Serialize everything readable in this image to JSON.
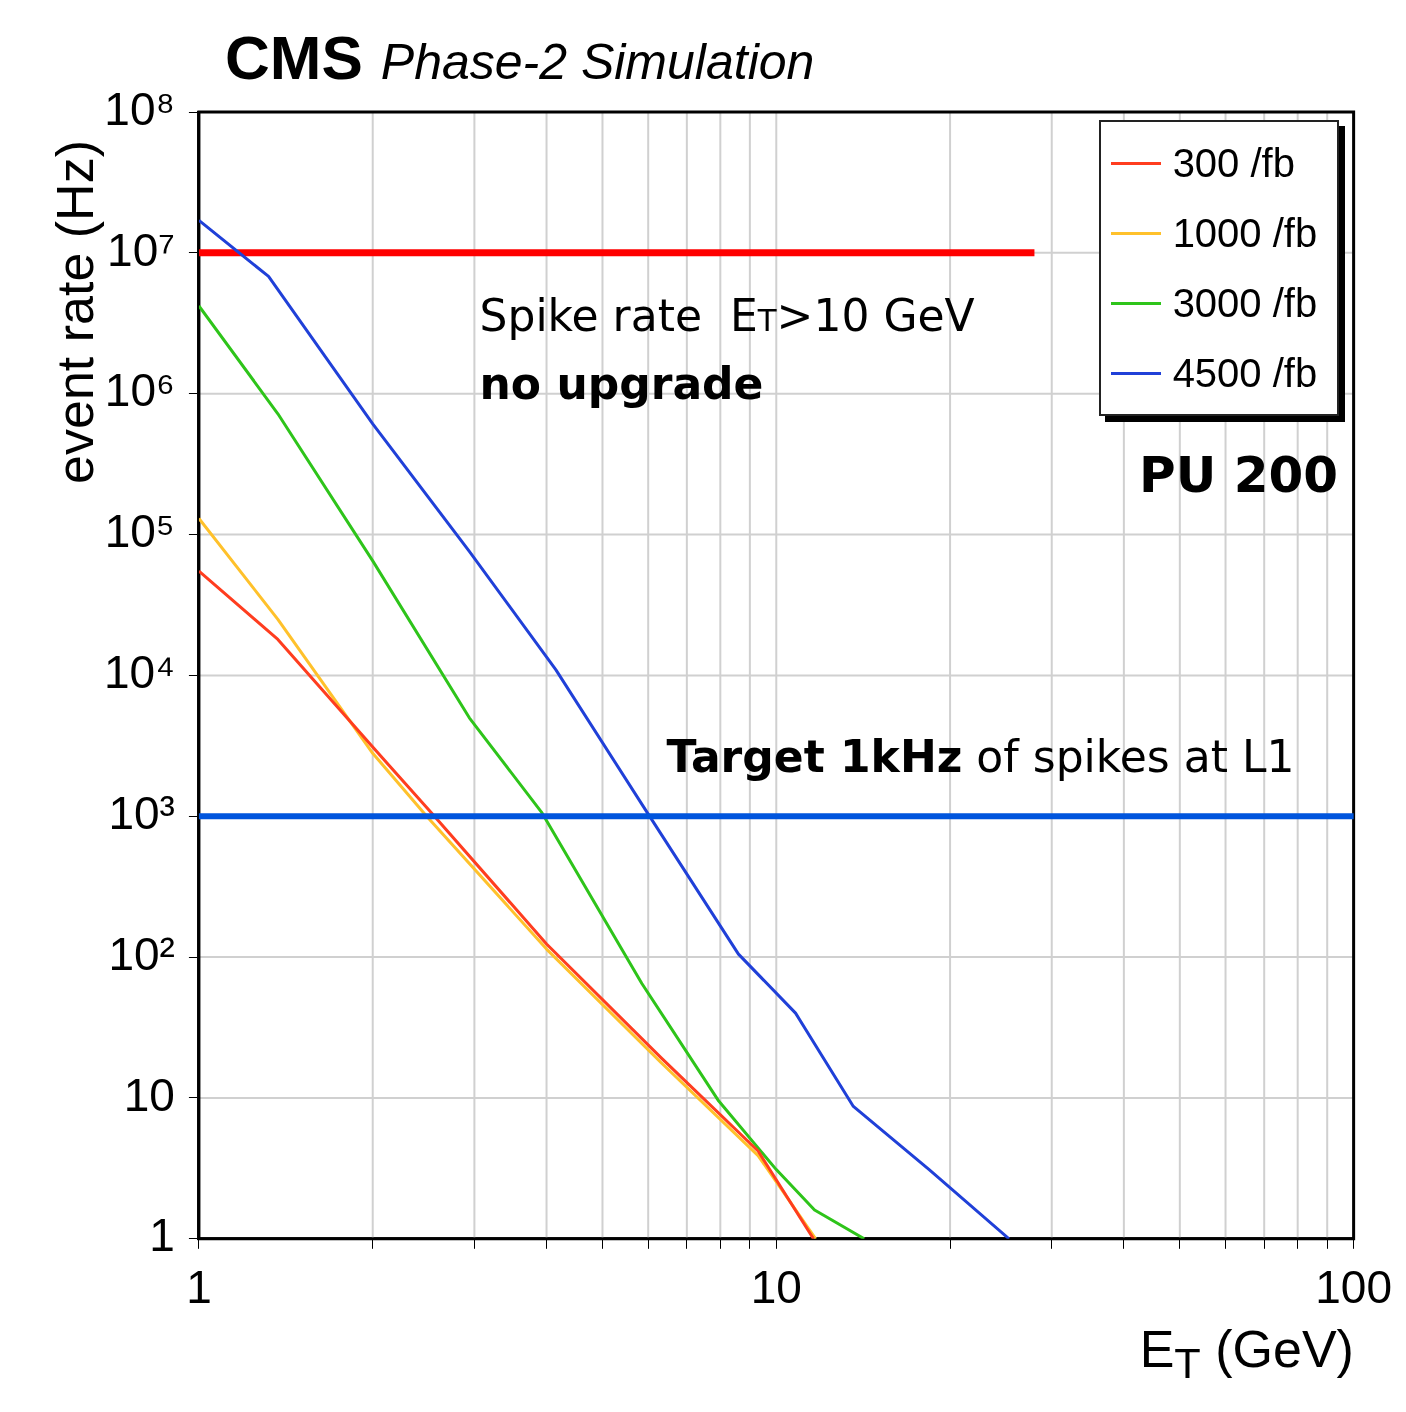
{
  "chart_data": {
    "type": "line",
    "title": "CMS",
    "subtitle": "Phase-2 Simulation",
    "xlabel": "E$_{T}$ (GeV)",
    "ylabel": "event rate (Hz)",
    "log": "xy",
    "grid": true,
    "legend": "top right",
    "marker": "none",
    "line_style": "solid",
    "xlim": [
      1,
      100
    ],
    "xticks": [
      1,
      {
        "value": 2,
        "label": null
      },
      {
        "value": 3,
        "label": null
      },
      {
        "value": 4,
        "label": null
      },
      {
        "value": 5,
        "label": null
      },
      {
        "value": 6,
        "label": null
      },
      {
        "value": 7,
        "label": null
      },
      {
        "value": 8,
        "label": null
      },
      {
        "value": 9,
        "label": null
      },
      10,
      {
        "value": 20,
        "label": null
      },
      {
        "value": 30,
        "label": null
      },
      {
        "value": 40,
        "label": null
      },
      {
        "value": 50,
        "label": null
      },
      {
        "value": 60,
        "label": null
      },
      {
        "value": 70,
        "label": null
      },
      {
        "value": 80,
        "label": null
      },
      {
        "value": 90,
        "label": null
      },
      100
    ],
    "ylim": [
      1,
      100000000
    ],
    "yticks": [
      1,
      10,
      {
        "value": 100,
        "label": "10²"
      },
      {
        "value": 1000,
        "label": "10³"
      },
      {
        "value": 10000,
        "label": "10⁴"
      },
      {
        "value": 100000,
        "label": "10⁵"
      },
      {
        "value": 1000000,
        "label": "10⁶"
      },
      {
        "value": 10000000,
        "label": "10⁷"
      },
      {
        "value": 100000000,
        "label": "10⁸"
      }
    ],
    "series": [
      {
        "name": "300 /fb",
        "color": "#ff3d1f",
        "x": [
          1,
          1.37,
          2,
          2.52,
          4,
          6.3,
          9.3,
          11.6
        ],
        "values": [
          55000,
          18000,
          3100,
          1070,
          124,
          19.5,
          4.2,
          1
        ]
      },
      {
        "name": "1000 /fb",
        "color": "#ffc12b",
        "x": [
          1,
          1.37,
          2,
          2.48,
          4,
          6.3,
          9.3,
          11.7
        ],
        "values": [
          130000,
          25000,
          2800,
          1000,
          114,
          18,
          3.9,
          1
        ]
      },
      {
        "name": "3000 /fb",
        "color": "#2ec41a",
        "x": [
          1,
          1.37,
          2,
          2.94,
          3.92,
          5.85,
          7.95,
          10,
          11.65,
          14.2
        ],
        "values": [
          4200000,
          720000,
          65000,
          5000,
          1070,
          65,
          9.5,
          3.1,
          1.6,
          1
        ]
      },
      {
        "name": "4500 /fb",
        "color": "#2040d8",
        "x": [
          1,
          1.32,
          2,
          2.94,
          4.15,
          5.97,
          8.6,
          10.8,
          13.6,
          18.4,
          25.3
        ],
        "values": [
          17000000,
          6800000,
          610000,
          76000,
          11000,
          1070,
          105,
          40,
          8.7,
          3.1,
          1
        ]
      },
      {
        "type": "line",
        "color": "#ff0000",
        "x": [
          1,
          28
        ],
        "values": [
          10000000,
          10000000
        ]
      }
    ],
    "ref_lines": [
      {
        "axis": "y",
        "value": 1000,
        "color": "#0055dd"
      }
    ],
    "annotations": [
      "Spike rate  E$_{T}$>10 GeV",
      "no upgrade",
      "Target 1kHz",
      "of spikes at L1",
      "PU 200"
    ]
  }
}
